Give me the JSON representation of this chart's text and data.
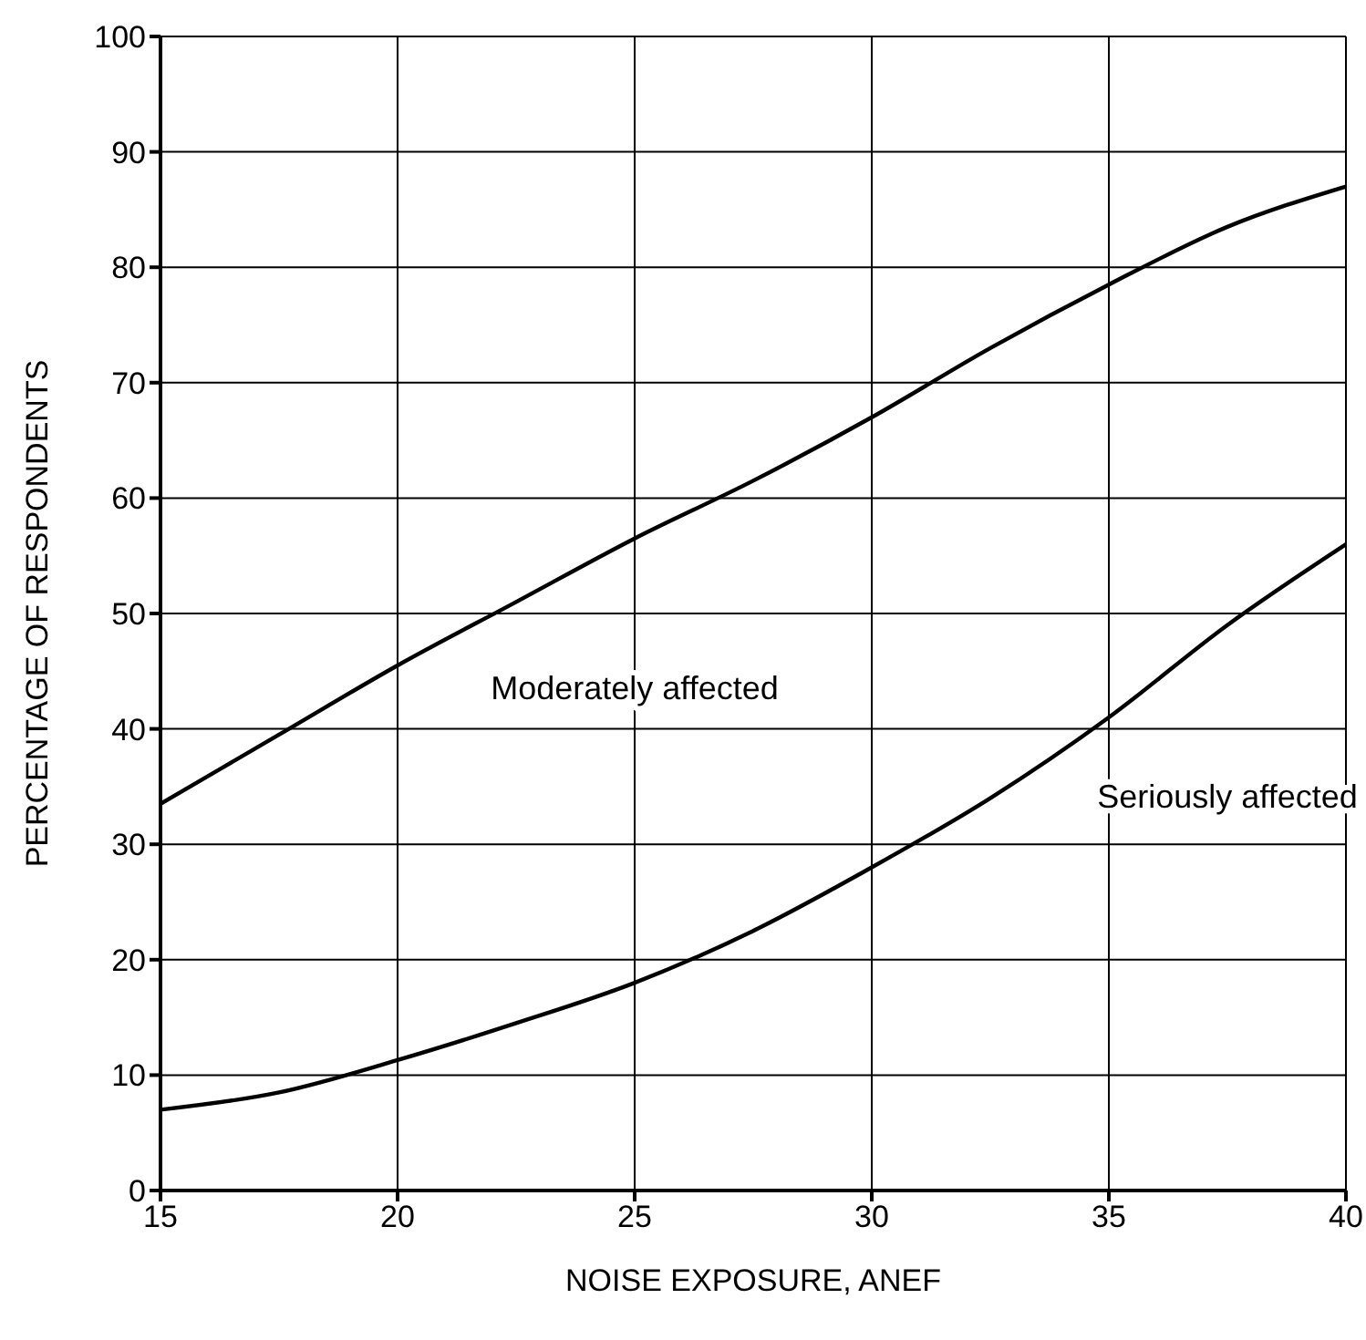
{
  "chart_data": {
    "type": "line",
    "xlabel": "NOISE EXPOSURE, ANEF",
    "ylabel": "PERCENTAGE OF RESPONDENTS",
    "x": [
      15,
      17.5,
      20,
      22.5,
      25,
      27.5,
      30,
      32.5,
      35,
      37.5,
      40
    ],
    "series": [
      {
        "name": "Moderately affected",
        "color": "#000000",
        "values": [
          33.5,
          39.5,
          45.5,
          51,
          56.5,
          61.5,
          67,
          73,
          78.5,
          83.5,
          87
        ]
      },
      {
        "name": "Seriously affected",
        "color": "#000000",
        "values": [
          7,
          8.5,
          11.3,
          14.5,
          18,
          22.5,
          28,
          34,
          41,
          49,
          56
        ]
      }
    ],
    "xlim": [
      15,
      40
    ],
    "xticks": [
      15,
      20,
      25,
      30,
      35,
      40
    ],
    "ylim": [
      0,
      100
    ],
    "yticks": [
      0,
      10,
      20,
      30,
      40,
      50,
      60,
      70,
      80,
      90,
      100
    ],
    "grid": true,
    "legend": false,
    "marker": "none",
    "line_style": "solid"
  }
}
